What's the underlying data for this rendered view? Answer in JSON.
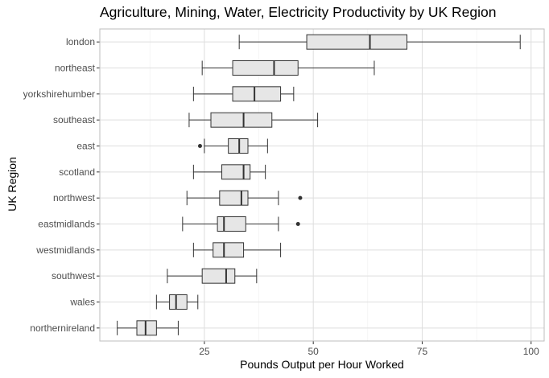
{
  "chart_data": {
    "type": "boxplot",
    "orientation": "horizontal",
    "title": "Agriculture, Mining, Water, Electricity Productivity by UK Region",
    "xlabel": "Pounds Output per Hour Worked",
    "ylabel": "UK Region",
    "xlim": [
      1,
      103
    ],
    "x_ticks": [
      25,
      50,
      75,
      100
    ],
    "grid": true,
    "legend": "none",
    "colors": {
      "box_fill": "#e6e6e6",
      "box_stroke": "#333333",
      "grid_major": "#dedede",
      "grid_minor": "#efefef",
      "panel_border": "#bdbdbd",
      "outlier": "#333333"
    },
    "categories": [
      "london",
      "northeast",
      "yorkshirehumber",
      "southeast",
      "east",
      "scotland",
      "northwest",
      "eastmidlands",
      "westmidlands",
      "southwest",
      "wales",
      "northernireland"
    ],
    "boxes": [
      {
        "category": "london",
        "whisker_low": 33,
        "q1": 48.5,
        "median": 63,
        "q3": 71.5,
        "whisker_high": 97.5,
        "outliers": []
      },
      {
        "category": "northeast",
        "whisker_low": 24.5,
        "q1": 31.5,
        "median": 41,
        "q3": 46.5,
        "whisker_high": 64,
        "outliers": []
      },
      {
        "category": "yorkshirehumber",
        "whisker_low": 22.5,
        "q1": 31.5,
        "median": 36.5,
        "q3": 42.5,
        "whisker_high": 45.5,
        "outliers": []
      },
      {
        "category": "southeast",
        "whisker_low": 21.5,
        "q1": 26.5,
        "median": 34,
        "q3": 40.5,
        "whisker_high": 51,
        "outliers": []
      },
      {
        "category": "east",
        "whisker_low": 25,
        "q1": 30.5,
        "median": 33,
        "q3": 35,
        "whisker_high": 39.5,
        "outliers": [
          24
        ]
      },
      {
        "category": "scotland",
        "whisker_low": 22.5,
        "q1": 29,
        "median": 34,
        "q3": 35.5,
        "whisker_high": 39,
        "outliers": []
      },
      {
        "category": "northwest",
        "whisker_low": 21,
        "q1": 28.5,
        "median": 33.5,
        "q3": 35,
        "whisker_high": 42,
        "outliers": [
          47
        ]
      },
      {
        "category": "eastmidlands",
        "whisker_low": 20,
        "q1": 28,
        "median": 29.5,
        "q3": 34.5,
        "whisker_high": 42,
        "outliers": [
          46.5
        ]
      },
      {
        "category": "westmidlands",
        "whisker_low": 22.5,
        "q1": 27,
        "median": 29.5,
        "q3": 34,
        "whisker_high": 42.5,
        "outliers": []
      },
      {
        "category": "southwest",
        "whisker_low": 16.5,
        "q1": 24.5,
        "median": 30,
        "q3": 32,
        "whisker_high": 37,
        "outliers": []
      },
      {
        "category": "wales",
        "whisker_low": 14,
        "q1": 17,
        "median": 18.5,
        "q3": 21,
        "whisker_high": 23.5,
        "outliers": []
      },
      {
        "category": "northernireland",
        "whisker_low": 5,
        "q1": 9.5,
        "median": 11.5,
        "q3": 14,
        "whisker_high": 19,
        "outliers": []
      }
    ]
  }
}
